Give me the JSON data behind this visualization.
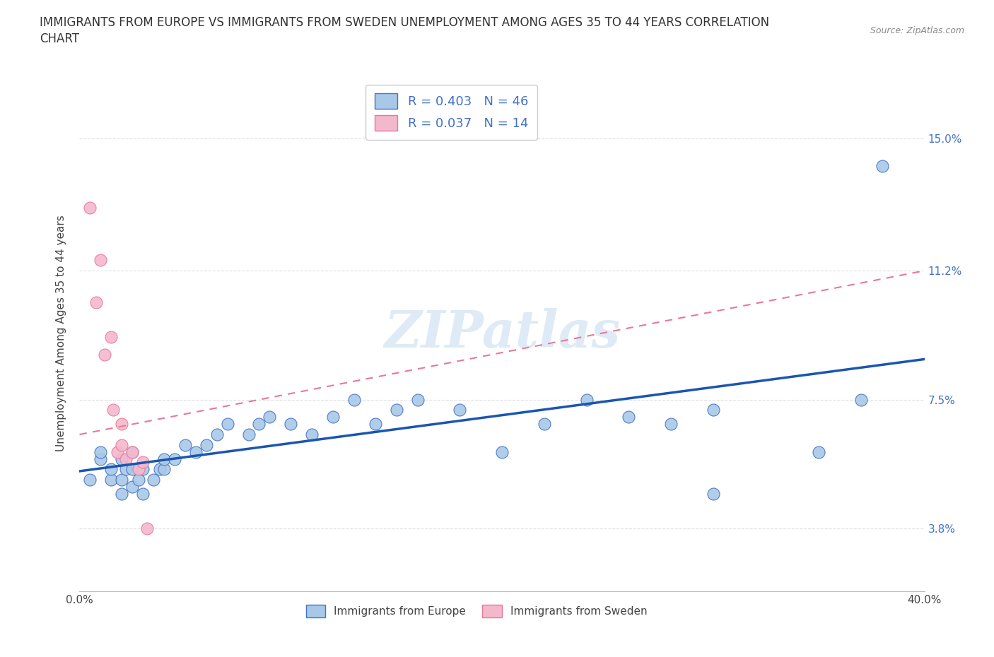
{
  "title_line1": "IMMIGRANTS FROM EUROPE VS IMMIGRANTS FROM SWEDEN UNEMPLOYMENT AMONG AGES 35 TO 44 YEARS CORRELATION",
  "title_line2": "CHART",
  "source": "Source: ZipAtlas.com",
  "ylabel": "Unemployment Among Ages 35 to 44 years",
  "xlim": [
    0.0,
    0.4
  ],
  "ylim": [
    0.02,
    0.168
  ],
  "xticks": [
    0.0,
    0.05,
    0.1,
    0.15,
    0.2,
    0.25,
    0.3,
    0.35,
    0.4
  ],
  "xticklabels": [
    "0.0%",
    "",
    "",
    "",
    "",
    "",
    "",
    "",
    "40.0%"
  ],
  "yticks": [
    0.038,
    0.075,
    0.112,
    0.15
  ],
  "yticklabels": [
    "3.8%",
    "7.5%",
    "11.2%",
    "15.0%"
  ],
  "legend_blue_label": "R = 0.403   N = 46",
  "legend_pink_label": "R = 0.037   N = 14",
  "legend_bottom_blue": "Immigrants from Europe",
  "legend_bottom_pink": "Immigrants from Sweden",
  "blue_color": "#a8c8e8",
  "blue_edge_color": "#4472c4",
  "pink_color": "#f4b8cc",
  "pink_edge_color": "#e87898",
  "blue_line_color": "#1a56b0",
  "pink_line_color": "#e87898",
  "watermark": "ZIPatlas",
  "blue_scatter_x": [
    0.005,
    0.01,
    0.01,
    0.015,
    0.015,
    0.02,
    0.02,
    0.02,
    0.022,
    0.025,
    0.025,
    0.025,
    0.028,
    0.03,
    0.03,
    0.035,
    0.038,
    0.04,
    0.04,
    0.045,
    0.05,
    0.055,
    0.06,
    0.065,
    0.07,
    0.08,
    0.085,
    0.09,
    0.1,
    0.11,
    0.12,
    0.13,
    0.14,
    0.15,
    0.16,
    0.18,
    0.2,
    0.22,
    0.24,
    0.26,
    0.28,
    0.3,
    0.3,
    0.35,
    0.37,
    0.38
  ],
  "blue_scatter_y": [
    0.052,
    0.058,
    0.06,
    0.052,
    0.055,
    0.048,
    0.052,
    0.058,
    0.055,
    0.05,
    0.055,
    0.06,
    0.052,
    0.048,
    0.055,
    0.052,
    0.055,
    0.055,
    0.058,
    0.058,
    0.062,
    0.06,
    0.062,
    0.065,
    0.068,
    0.065,
    0.068,
    0.07,
    0.068,
    0.065,
    0.07,
    0.075,
    0.068,
    0.072,
    0.075,
    0.072,
    0.06,
    0.068,
    0.075,
    0.07,
    0.068,
    0.048,
    0.072,
    0.06,
    0.075,
    0.142
  ],
  "pink_scatter_x": [
    0.005,
    0.008,
    0.01,
    0.012,
    0.015,
    0.016,
    0.018,
    0.02,
    0.02,
    0.022,
    0.025,
    0.028,
    0.03,
    0.032
  ],
  "pink_scatter_y": [
    0.13,
    0.103,
    0.115,
    0.088,
    0.093,
    0.072,
    0.06,
    0.068,
    0.062,
    0.058,
    0.06,
    0.055,
    0.057,
    0.038
  ],
  "background_color": "#ffffff",
  "grid_color": "#e0e0e0"
}
